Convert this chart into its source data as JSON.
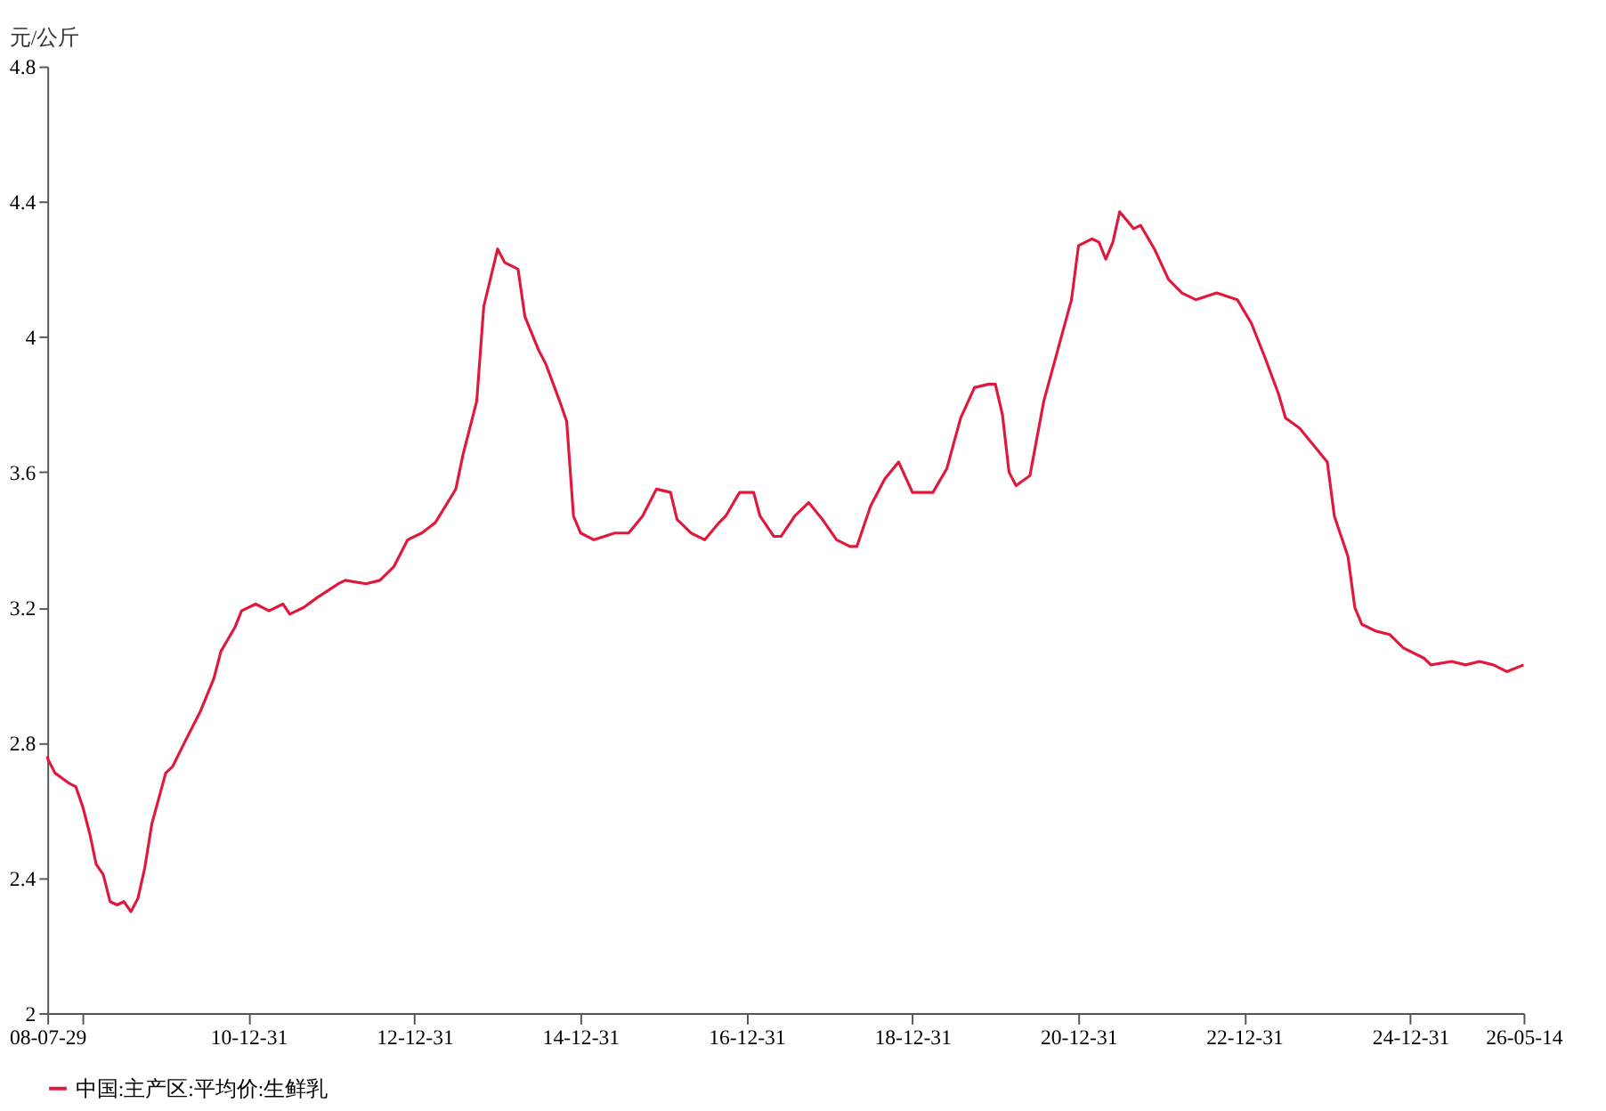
{
  "chart_data": {
    "type": "line",
    "ylabel": "元/公斤",
    "x": [
      "2008-07-29",
      "2008-08",
      "2008-09",
      "2008-11",
      "2008-12",
      "2009-01",
      "2009-02",
      "2009-03",
      "2009-04",
      "2009-05",
      "2009-06",
      "2009-07",
      "2009-08",
      "2009-09",
      "2009-10",
      "2009-11",
      "2010-01",
      "2010-02",
      "2010-04",
      "2010-06",
      "2010-08",
      "2010-09",
      "2010-11",
      "2010-12",
      "2011-02",
      "2011-04",
      "2011-06",
      "2011-07",
      "2011-09",
      "2011-11",
      "2012-02",
      "2012-03",
      "2012-06",
      "2012-08",
      "2012-10",
      "2012-12",
      "2013-02",
      "2013-04",
      "2013-07",
      "2013-08",
      "2013-10",
      "2013-11",
      "2014-01",
      "2014-02",
      "2014-04",
      "2014-05",
      "2014-07",
      "2014-08",
      "2014-10",
      "2014-11",
      "2014-12",
      "2015-01",
      "2015-03",
      "2015-06",
      "2015-08",
      "2015-10",
      "2015-12",
      "2016-02",
      "2016-03",
      "2016-05",
      "2016-07",
      "2016-09",
      "2016-10",
      "2016-12",
      "2017-02",
      "2017-03",
      "2017-05",
      "2017-06",
      "2017-08",
      "2017-10",
      "2017-12",
      "2018-02",
      "2018-04",
      "2018-05",
      "2018-07",
      "2018-09",
      "2018-11",
      "2019-01",
      "2019-04",
      "2019-06",
      "2019-08",
      "2019-10",
      "2019-12",
      "2020-01",
      "2020-02",
      "2020-03",
      "2020-04",
      "2020-06",
      "2020-08",
      "2020-10",
      "2020-12",
      "2021-01",
      "2021-03",
      "2021-04",
      "2021-05",
      "2021-06",
      "2021-07",
      "2021-09",
      "2021-10",
      "2021-12",
      "2022-02",
      "2022-04",
      "2022-06",
      "2022-09",
      "2022-12",
      "2023-02",
      "2023-04",
      "2023-06",
      "2023-07",
      "2023-09",
      "2023-11",
      "2024-01",
      "2024-02",
      "2024-04",
      "2024-05",
      "2024-06",
      "2024-08",
      "2024-10",
      "2024-12",
      "2025-03",
      "2025-04",
      "2025-07",
      "2025-09",
      "2025-11",
      "2026-01",
      "2026-03",
      "2026-05-14"
    ],
    "series": [
      {
        "name": "中国:主产区:平均价:生鲜乳",
        "color": "#e0183c",
        "values": [
          2.76,
          2.75,
          2.71,
          2.68,
          2.67,
          2.61,
          2.53,
          2.44,
          2.41,
          2.33,
          2.32,
          2.33,
          2.3,
          2.34,
          2.43,
          2.56,
          2.71,
          2.73,
          2.81,
          2.89,
          2.99,
          3.07,
          3.14,
          3.19,
          3.21,
          3.19,
          3.21,
          3.18,
          3.2,
          3.23,
          3.27,
          3.28,
          3.27,
          3.28,
          3.32,
          3.4,
          3.42,
          3.45,
          3.55,
          3.65,
          3.81,
          4.09,
          4.26,
          4.22,
          4.2,
          4.06,
          3.96,
          3.92,
          3.81,
          3.75,
          3.47,
          3.42,
          3.4,
          3.42,
          3.42,
          3.47,
          3.55,
          3.54,
          3.46,
          3.42,
          3.4,
          3.45,
          3.47,
          3.54,
          3.54,
          3.47,
          3.41,
          3.41,
          3.47,
          3.51,
          3.46,
          3.4,
          3.38,
          3.38,
          3.5,
          3.58,
          3.63,
          3.54,
          3.54,
          3.61,
          3.76,
          3.85,
          3.86,
          3.86,
          3.77,
          3.6,
          3.56,
          3.59,
          3.81,
          3.96,
          4.11,
          4.27,
          4.29,
          4.28,
          4.23,
          4.28,
          4.37,
          4.32,
          4.33,
          4.26,
          4.17,
          4.13,
          4.11,
          4.13,
          4.11,
          4.04,
          3.94,
          3.83,
          3.76,
          3.73,
          3.68,
          3.63,
          3.47,
          3.35,
          3.2,
          3.15,
          3.13,
          3.12,
          3.08,
          3.05,
          3.03,
          3.04,
          3.03,
          3.04,
          3.03,
          3.01,
          3.03
        ]
      }
    ],
    "xlim": [
      "2008-07-29",
      "2026-05-14"
    ],
    "xticks": [
      {
        "value": "2008-07-29",
        "label": "08-07-29"
      },
      {
        "value": "2008-12-31",
        "label": null
      },
      {
        "value": "2010-12-31",
        "label": "10-12-31"
      },
      {
        "value": "2012-12-31",
        "label": "12-12-31"
      },
      {
        "value": "2014-12-31",
        "label": "14-12-31"
      },
      {
        "value": "2016-12-31",
        "label": "16-12-31"
      },
      {
        "value": "2018-12-31",
        "label": "18-12-31"
      },
      {
        "value": "2020-12-31",
        "label": "20-12-31"
      },
      {
        "value": "2022-12-31",
        "label": "22-12-31"
      },
      {
        "value": "2024-12-31",
        "label": "24-12-31"
      },
      {
        "value": "2026-05-14",
        "label": "26-05-14"
      }
    ],
    "ylim": [
      2,
      4.8
    ],
    "yticks": [
      2,
      2.4,
      2.8,
      3.2,
      3.6,
      4,
      4.4,
      4.8
    ],
    "legend": "bottom",
    "grid": false,
    "marker": "none",
    "line_style": "solid"
  }
}
